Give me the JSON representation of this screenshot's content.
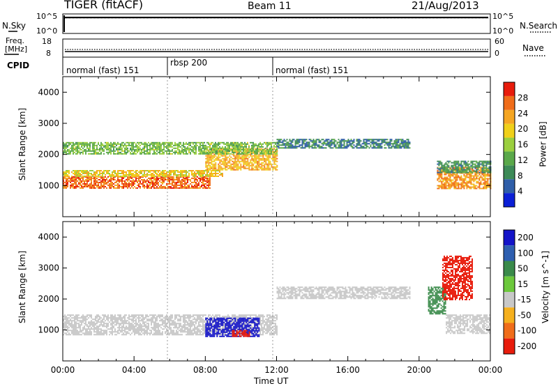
{
  "header": {
    "left": "TIGER (fitACF)",
    "center": "Beam 11",
    "right": "21/Aug/2013"
  },
  "nsky_panel": {
    "label": "N.Sky",
    "right_label": "N.Search",
    "ticks": [
      "10^5",
      "10^0"
    ]
  },
  "freq_panel": {
    "label_line1": "Freq.",
    "label_line2": "[MHz]",
    "right_label": "Nave",
    "left_ticks": [
      "18",
      "8"
    ],
    "right_ticks": [
      "60",
      "0"
    ]
  },
  "cpid": {
    "label": "CPID",
    "segments": [
      "normal (fast) 151",
      "rbsp 200",
      "normal (fast) 151"
    ]
  },
  "chart_data": [
    {
      "type": "heatmap",
      "panel": "power",
      "ylabel": "Slant Range [km]",
      "xlabel": "",
      "ylim": [
        0,
        4500
      ],
      "yticks": [
        1000,
        2000,
        3000,
        4000
      ],
      "xlim_hours": [
        0,
        24
      ],
      "colorbar": {
        "label": "Power [dB]",
        "range": [
          0,
          32
        ],
        "ticks": [
          4,
          8,
          12,
          16,
          20,
          24,
          28
        ],
        "colors": [
          "#0b1fd6",
          "#2f5ea8",
          "#3d8a57",
          "#5aa84a",
          "#9bcf3f",
          "#f0d01a",
          "#f5a623",
          "#f06d1a",
          "#e81c0c"
        ]
      },
      "regions": [
        {
          "t0": 0.0,
          "t1": 8.3,
          "r0": 900,
          "r1": 1300,
          "value": 27
        },
        {
          "t0": 0.0,
          "t1": 9.0,
          "r0": 1300,
          "r1": 1500,
          "value": 20
        },
        {
          "t0": 8.0,
          "t1": 12.0,
          "r0": 1500,
          "r1": 2200,
          "value": 22
        },
        {
          "t0": 0.0,
          "t1": 12.0,
          "r0": 2000,
          "r1": 2400,
          "value": 14
        },
        {
          "t0": 12.0,
          "t1": 19.5,
          "r0": 2200,
          "r1": 2500,
          "value": 8
        },
        {
          "t0": 21.0,
          "t1": 24.0,
          "r0": 900,
          "r1": 1600,
          "value": 24
        },
        {
          "t0": 21.0,
          "t1": 24.0,
          "r0": 1400,
          "r1": 1800,
          "value": 10
        }
      ]
    },
    {
      "type": "heatmap",
      "panel": "velocity",
      "ylabel": "Slant Range [km]",
      "xlabel": "Time UT",
      "ylim": [
        0,
        4500
      ],
      "yticks": [
        1000,
        2000,
        3000,
        4000
      ],
      "xlim_hours": [
        0,
        24
      ],
      "xticks": [
        "00:00",
        "04:00",
        "08:00",
        "12:00",
        "16:00",
        "20:00",
        "00:00"
      ],
      "colorbar": {
        "label": "Velocity [m s^-1]",
        "ticks": [
          "200",
          "100",
          "50",
          "15",
          "-15",
          "-50",
          "-100",
          "-200"
        ],
        "colors": [
          "#1414c8",
          "#2e5fb0",
          "#3a8a4a",
          "#6cc83c",
          "#c8c8c8",
          "#f5b01e",
          "#f06d1a",
          "#e81c0c"
        ]
      },
      "regions": [
        {
          "t0": 0.0,
          "t1": 12.0,
          "r0": 850,
          "r1": 1500,
          "value": 0
        },
        {
          "t0": 12.0,
          "t1": 19.5,
          "r0": 2000,
          "r1": 2400,
          "value": 0
        },
        {
          "t0": 8.0,
          "t1": 11.0,
          "r0": 800,
          "r1": 1400,
          "value": 200
        },
        {
          "t0": 9.5,
          "t1": 10.5,
          "r0": 800,
          "r1": 1000,
          "value": -200
        },
        {
          "t0": 20.5,
          "t1": 21.5,
          "r0": 1500,
          "r1": 2400,
          "value": 50
        },
        {
          "t0": 21.3,
          "t1": 23.0,
          "r0": 2000,
          "r1": 3400,
          "value": -200
        },
        {
          "t0": 21.5,
          "t1": 24.0,
          "r0": 900,
          "r1": 1500,
          "value": 0
        }
      ]
    }
  ]
}
